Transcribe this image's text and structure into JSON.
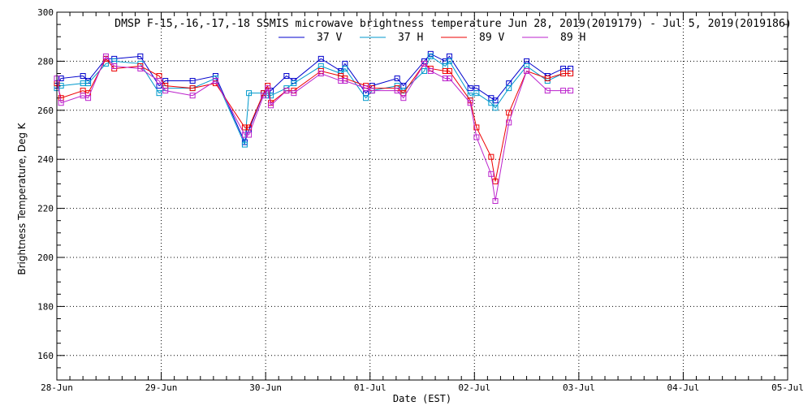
{
  "chart_data": {
    "type": "line",
    "title": "DMSP F-15,-16,-17,-18 SSMIS microwave brightness temperature Jun 28, 2019(2019179) - Jul  5, 2019(2019186)",
    "xlabel": "Date (EST)",
    "ylabel": "Brightness Temperature, Deg K",
    "ylim": [
      150,
      300
    ],
    "yticks": [
      160,
      180,
      200,
      220,
      240,
      260,
      280,
      300
    ],
    "xlim_days": [
      0,
      7
    ],
    "xticks": [
      "28-Jun",
      "29-Jun",
      "30-Jun",
      "01-Jul",
      "02-Jul",
      "03-Jul",
      "04-Jul",
      "05-Jul"
    ],
    "grid": true,
    "legend_position": "top-center",
    "x": [
      0.0,
      0.04,
      0.25,
      0.3,
      0.47,
      0.55,
      0.8,
      0.98,
      1.04,
      1.3,
      1.52,
      1.8,
      1.84,
      1.98,
      2.02,
      2.05,
      2.2,
      2.27,
      2.53,
      2.72,
      2.76,
      2.96,
      3.02,
      3.26,
      3.32,
      3.52,
      3.58,
      3.72,
      3.76,
      3.96,
      4.02,
      4.16,
      4.2,
      4.33,
      4.5,
      4.7,
      4.85,
      4.92
    ],
    "series": [
      {
        "name": "37 V",
        "color": "#0000cc",
        "values": [
          270,
          273,
          274,
          272,
          281,
          281,
          282,
          270,
          272,
          272,
          274,
          247,
          252,
          267,
          268,
          268,
          274,
          272,
          281,
          276,
          279,
          267,
          270,
          273,
          270,
          280,
          283,
          280,
          282,
          269,
          269,
          265,
          264,
          271,
          280,
          274,
          277,
          277
        ]
      },
      {
        "name": "37 H",
        "color": "#0099cc",
        "values": [
          269,
          270,
          271,
          271,
          279,
          280,
          279,
          267,
          269,
          269,
          273,
          246,
          267,
          267,
          266,
          266,
          269,
          271,
          278,
          275,
          277,
          265,
          268,
          270,
          268,
          276,
          282,
          278,
          280,
          266,
          267,
          263,
          261,
          269,
          278,
          272,
          275,
          275
        ]
      },
      {
        "name": "89 V",
        "color": "#ee0000",
        "values": [
          271,
          265,
          268,
          267,
          281,
          277,
          278,
          274,
          270,
          269,
          271,
          253,
          253,
          267,
          270,
          263,
          268,
          268,
          276,
          274,
          273,
          270,
          269,
          269,
          267,
          279,
          277,
          276,
          276,
          264,
          253,
          241,
          231,
          259,
          276,
          273,
          275,
          275
        ]
      },
      {
        "name": "89 H",
        "color": "#bb22cc",
        "values": [
          273,
          263,
          266,
          265,
          282,
          278,
          277,
          272,
          268,
          266,
          272,
          250,
          250,
          266,
          269,
          262,
          268,
          267,
          275,
          272,
          272,
          269,
          268,
          268,
          265,
          279,
          276,
          273,
          273,
          263,
          249,
          234,
          223,
          255,
          276,
          268,
          268,
          268
        ]
      }
    ]
  }
}
